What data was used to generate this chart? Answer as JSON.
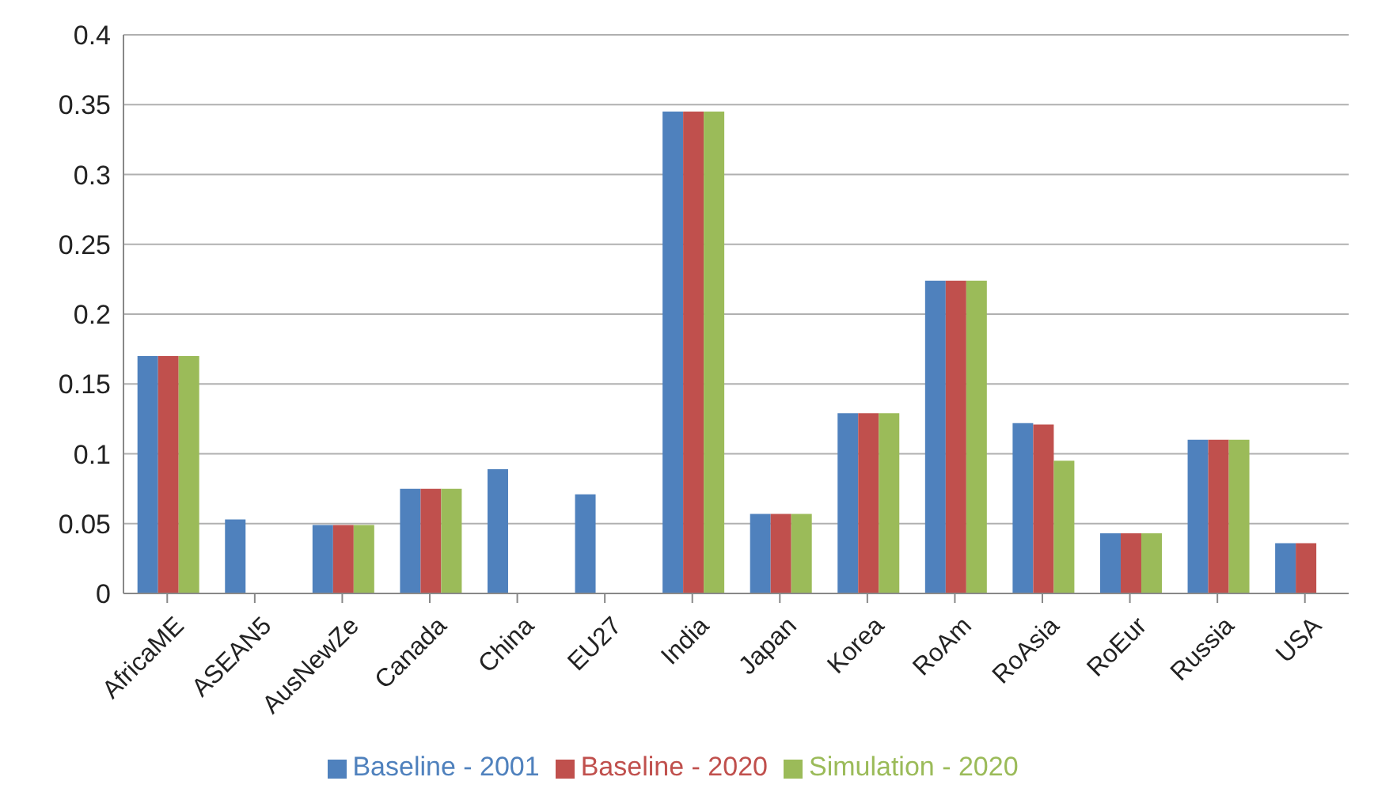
{
  "chart_data": {
    "type": "bar",
    "categories": [
      "AfricaME",
      "ASEAN5",
      "AusNewZe",
      "Canada",
      "China",
      "EU27",
      "India",
      "Japan",
      "Korea",
      "RoAm",
      "RoAsia",
      "RoEur",
      "Russia",
      "USA"
    ],
    "series": [
      {
        "name": "Baseline - 2001",
        "color": "#4f81bd",
        "values": [
          0.17,
          0.053,
          0.049,
          0.075,
          0.089,
          0.071,
          0.345,
          0.057,
          0.129,
          0.224,
          0.122,
          0.043,
          0.11,
          0.036
        ]
      },
      {
        "name": "Baseline - 2020",
        "color": "#c0504d",
        "values": [
          0.17,
          null,
          0.049,
          0.075,
          null,
          null,
          0.345,
          0.057,
          0.129,
          0.224,
          0.121,
          0.043,
          0.11,
          0.036
        ]
      },
      {
        "name": "Simulation - 2020",
        "color": "#9bbb59",
        "values": [
          0.17,
          null,
          0.049,
          0.075,
          null,
          null,
          0.345,
          0.057,
          0.129,
          0.224,
          0.095,
          0.043,
          0.11,
          null
        ]
      }
    ],
    "ylim": [
      0,
      0.4
    ],
    "yticks": [
      0,
      0.05,
      0.1,
      0.15,
      0.2,
      0.25,
      0.3,
      0.35,
      0.4
    ],
    "grid": "y",
    "legend": "bottom"
  }
}
